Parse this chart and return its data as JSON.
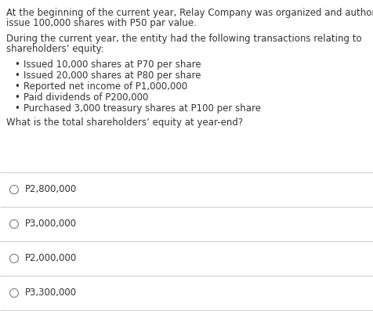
{
  "bg_color": "#ffffff",
  "text_color": "#333333",
  "para1_line1": "At the beginning of the current year, Relay Company was organized and authorized to",
  "para1_line2": "issue 100,000 shares with P50 par value.",
  "para2_line1": "During the current year, the entity had the following transactions relating to",
  "para2_line2": "shareholders’ equity:",
  "bullets": [
    "Issued 10,000 shares at P70 per share",
    "Issued 20,000 shares at P80 per share",
    "Reported net income of P1,000,000",
    "Paid dividends of P200,000",
    "Purchased 3,000 treasury shares at P100 per share"
  ],
  "question": "What is the total shareholders’ equity at year-end?",
  "options": [
    "P2,800,000",
    "P3,000,000",
    "P2,000,000",
    "P3,300,000"
  ],
  "font_size": 8.5,
  "line_color": "#d0d0d0",
  "circle_color": "#888888"
}
